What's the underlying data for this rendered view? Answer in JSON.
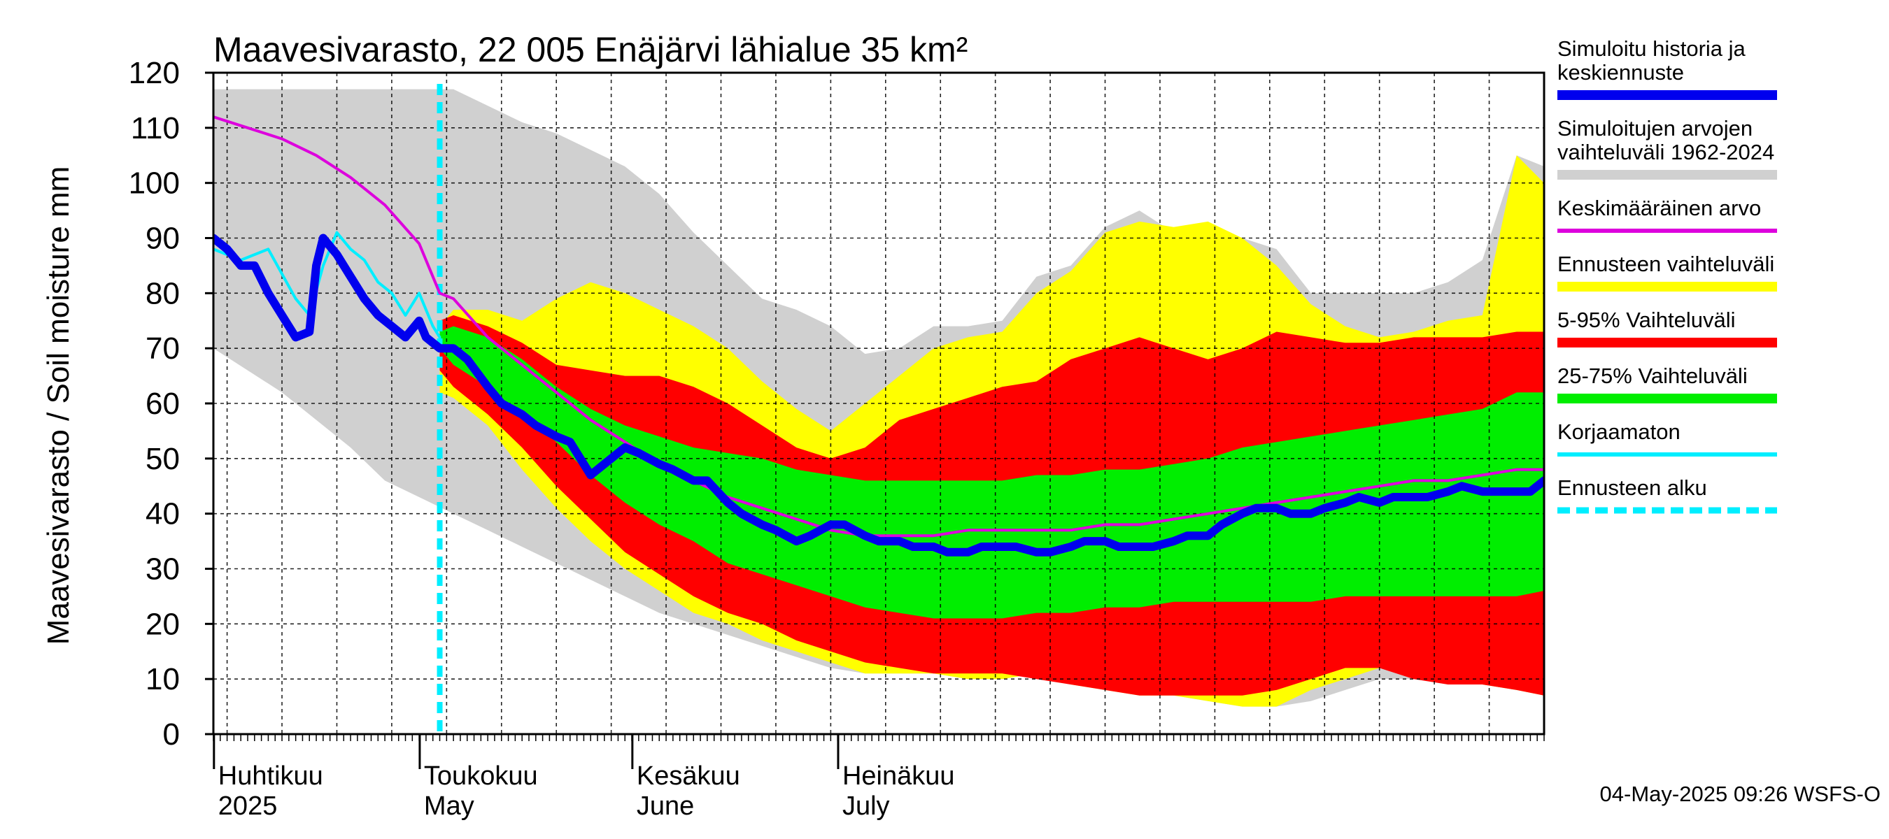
{
  "chart_data": {
    "type": "area",
    "title": "Maavesivarasto, 22 005 Enäjärvi lähialue 35 km²",
    "ylabel": "Maavesivarasto / Soil moisture   mm",
    "ylim": [
      0,
      120
    ],
    "yticks": [
      0,
      10,
      20,
      30,
      40,
      50,
      60,
      70,
      80,
      90,
      100,
      110,
      120
    ],
    "x_unit": "day of year 2025 (1 = 1 Jan)",
    "xlim": [
      90,
      284
    ],
    "forecast_start_day": 123,
    "month_labels": [
      {
        "day": 91,
        "fi": "Huhtikuu",
        "en": "2025"
      },
      {
        "day": 121,
        "fi": "Toukokuu",
        "en": "May"
      },
      {
        "day": 152,
        "fi": "Kesäkuu",
        "en": "June"
      },
      {
        "day": 182,
        "fi": "Heinäkuu",
        "en": "July"
      }
    ],
    "legend": [
      {
        "label": "Simuloitu historia ja keskiennuste",
        "color": "#0000ee",
        "style": "thick"
      },
      {
        "label": "Simuloitujen arvojen vaihteluväli 1962-2024",
        "color": "#d0d0d0",
        "style": "thick"
      },
      {
        "label": "Keskimääräinen arvo",
        "color": "#dd00dd",
        "style": "thin"
      },
      {
        "label": "Ennusteen vaihteluväli",
        "color": "#ffff00",
        "style": "thick"
      },
      {
        "label": "5-95% Vaihteluväli",
        "color": "#ff0000",
        "style": "thick"
      },
      {
        "label": "25-75% Vaihteluväli",
        "color": "#00ee00",
        "style": "thick"
      },
      {
        "label": "Korjaamaton",
        "color": "#00eeff",
        "style": "thin"
      },
      {
        "label": "Ennusteen alku",
        "color": "#00eeff",
        "style": "dashed"
      }
    ],
    "series": [
      {
        "name": "Simuloitujen arvojen vaihteluväli 1962-2024",
        "kind": "band",
        "color": "#d0d0d0",
        "x": [
          90,
          100,
          110,
          115,
          120,
          125,
          130,
          135,
          140,
          145,
          150,
          155,
          160,
          165,
          170,
          175,
          180,
          185,
          190,
          195,
          200,
          205,
          210,
          215,
          220,
          225,
          230,
          235,
          240,
          245,
          250,
          255,
          260,
          265,
          270,
          275,
          280,
          284
        ],
        "low": [
          70,
          62,
          52,
          46,
          43,
          40,
          37,
          34,
          31,
          28,
          25,
          22,
          20,
          18,
          16,
          14,
          12,
          11,
          11,
          11,
          10,
          10,
          11,
          9,
          9,
          8,
          7,
          6,
          5,
          5,
          6,
          8,
          10,
          10,
          9,
          9,
          8,
          7
        ],
        "high": [
          117,
          117,
          117,
          117,
          117,
          117,
          114,
          111,
          109,
          106,
          103,
          98,
          91,
          85,
          79,
          77,
          74,
          69,
          70,
          74,
          74,
          75,
          83,
          85,
          92,
          95,
          91,
          92,
          90,
          88,
          80,
          80,
          80,
          80,
          82,
          86,
          105,
          103
        ]
      },
      {
        "name": "Ennusteen vaihteluväli",
        "kind": "band",
        "color": "#ffff00",
        "x": [
          123,
          125,
          130,
          135,
          140,
          145,
          150,
          155,
          160,
          165,
          170,
          175,
          180,
          185,
          190,
          195,
          200,
          205,
          210,
          215,
          220,
          225,
          230,
          235,
          240,
          245,
          250,
          255,
          260,
          265,
          270,
          275,
          280,
          284
        ],
        "low": [
          62,
          61,
          56,
          48,
          41,
          35,
          30,
          26,
          22,
          20,
          17,
          15,
          13,
          11,
          11,
          11,
          10,
          10,
          11,
          9,
          8,
          7,
          7,
          6,
          5,
          5,
          8,
          10,
          12,
          11,
          10,
          9,
          8,
          7
        ],
        "high": [
          74,
          77,
          77,
          75,
          79,
          82,
          80,
          77,
          74,
          70,
          64,
          59,
          55,
          60,
          65,
          70,
          72,
          73,
          80,
          84,
          91,
          93,
          92,
          93,
          90,
          85,
          78,
          74,
          72,
          73,
          75,
          76,
          105,
          100
        ]
      },
      {
        "name": "5-95% Vaihteluväli",
        "kind": "band",
        "color": "#ff0000",
        "x": [
          123,
          125,
          130,
          135,
          140,
          145,
          150,
          155,
          160,
          165,
          170,
          175,
          180,
          185,
          190,
          195,
          200,
          205,
          210,
          215,
          220,
          225,
          230,
          235,
          240,
          245,
          250,
          255,
          260,
          265,
          270,
          275,
          280,
          284
        ],
        "low": [
          66,
          63,
          58,
          52,
          45,
          39,
          33,
          29,
          25,
          22,
          20,
          17,
          15,
          13,
          12,
          11,
          11,
          11,
          10,
          9,
          8,
          7,
          7,
          7,
          7,
          8,
          10,
          12,
          12,
          10,
          9,
          9,
          8,
          7
        ],
        "high": [
          75,
          76,
          74,
          71,
          67,
          66,
          65,
          65,
          63,
          60,
          56,
          52,
          50,
          52,
          57,
          59,
          61,
          63,
          64,
          68,
          70,
          72,
          70,
          68,
          70,
          73,
          72,
          71,
          71,
          72,
          72,
          72,
          73,
          73
        ]
      },
      {
        "name": "25-75% Vaihteluväli",
        "kind": "band",
        "color": "#00ee00",
        "x": [
          123,
          125,
          130,
          135,
          140,
          145,
          150,
          155,
          160,
          165,
          170,
          175,
          180,
          185,
          190,
          195,
          200,
          205,
          210,
          215,
          220,
          225,
          230,
          235,
          240,
          245,
          250,
          255,
          260,
          265,
          270,
          275,
          280,
          284
        ],
        "low": [
          70,
          67,
          63,
          58,
          53,
          47,
          42,
          38,
          35,
          31,
          29,
          27,
          25,
          23,
          22,
          21,
          21,
          21,
          22,
          22,
          23,
          23,
          24,
          24,
          24,
          24,
          24,
          25,
          25,
          25,
          25,
          25,
          25,
          26
        ],
        "high": [
          73,
          74,
          72,
          68,
          63,
          59,
          56,
          54,
          52,
          51,
          50,
          48,
          47,
          46,
          46,
          46,
          46,
          46,
          47,
          47,
          48,
          48,
          49,
          50,
          52,
          53,
          54,
          55,
          56,
          57,
          58,
          59,
          62,
          62
        ]
      },
      {
        "name": "Keskimääräinen arvo",
        "kind": "line",
        "color": "#dd00dd",
        "width": 4,
        "x": [
          90,
          95,
          100,
          105,
          110,
          115,
          120,
          123,
          125,
          130,
          135,
          140,
          145,
          150,
          155,
          160,
          165,
          170,
          175,
          180,
          185,
          190,
          195,
          200,
          205,
          210,
          215,
          220,
          225,
          230,
          235,
          240,
          245,
          250,
          255,
          260,
          265,
          270,
          275,
          280,
          284
        ],
        "y": [
          112,
          110,
          108,
          105,
          101,
          96,
          89,
          80,
          79,
          72,
          67,
          62,
          57,
          53,
          49,
          46,
          43,
          41,
          39,
          37,
          36,
          36,
          36,
          37,
          37,
          37,
          37,
          38,
          38,
          39,
          40,
          41,
          42,
          43,
          44,
          45,
          46,
          46,
          47,
          48,
          48
        ]
      },
      {
        "name": "Korjaamaton",
        "kind": "line",
        "color": "#00eeff",
        "width": 4,
        "x": [
          90,
          92,
          94,
          98,
          102,
          104,
          106,
          108,
          110,
          112,
          114,
          116,
          118,
          120,
          122,
          123
        ],
        "y": [
          88,
          87,
          86,
          88,
          79,
          76,
          85,
          91,
          88,
          86,
          82,
          80,
          76,
          80,
          74,
          72
        ]
      },
      {
        "name": "Simuloitu historia ja keskiennuste",
        "kind": "line",
        "color": "#0000ee",
        "width": 12,
        "x": [
          90,
          92,
          94,
          96,
          98,
          100,
          102,
          104,
          105,
          106,
          108,
          110,
          112,
          114,
          116,
          118,
          120,
          121,
          122,
          123,
          125,
          127,
          130,
          132,
          135,
          137,
          140,
          142,
          145,
          147,
          150,
          152,
          155,
          157,
          160,
          162,
          165,
          167,
          170,
          172,
          175,
          177,
          180,
          182,
          185,
          187,
          190,
          192,
          195,
          197,
          200,
          202,
          205,
          207,
          210,
          212,
          215,
          217,
          220,
          222,
          225,
          227,
          230,
          232,
          235,
          237,
          240,
          242,
          245,
          247,
          250,
          252,
          255,
          257,
          260,
          262,
          265,
          267,
          270,
          272,
          275,
          277,
          280,
          282,
          284
        ],
        "y": [
          90,
          88,
          85,
          85,
          80,
          76,
          72,
          73,
          85,
          90,
          87,
          83,
          79,
          76,
          74,
          72,
          75,
          72,
          71,
          70,
          70,
          68,
          63,
          60,
          58,
          56,
          54,
          53,
          47,
          49,
          52,
          51,
          49,
          48,
          46,
          46,
          42,
          40,
          38,
          37,
          35,
          36,
          38,
          38,
          36,
          35,
          35,
          34,
          34,
          33,
          33,
          34,
          34,
          34,
          33,
          33,
          34,
          35,
          35,
          34,
          34,
          34,
          35,
          36,
          36,
          38,
          40,
          41,
          41,
          40,
          40,
          41,
          42,
          43,
          42,
          43,
          43,
          43,
          44,
          45,
          44,
          44,
          44,
          44,
          46
        ]
      }
    ]
  },
  "footer": {
    "timestamp": "04-May-2025 09:26 WSFS-O"
  }
}
